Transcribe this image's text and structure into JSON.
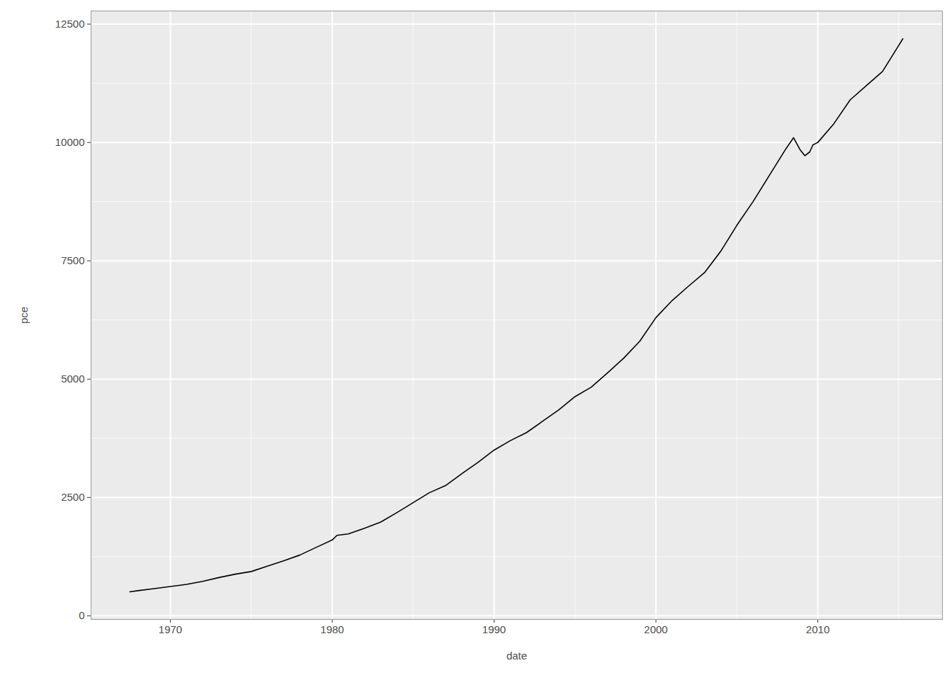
{
  "chart_data": {
    "type": "line",
    "x_label": "date",
    "y_label": "pce",
    "x": [
      1967.5,
      1968,
      1969,
      1970,
      1971,
      1972,
      1973,
      1974,
      1975,
      1976,
      1977,
      1978,
      1979,
      1980,
      1980.3,
      1981,
      1982,
      1983,
      1984,
      1985,
      1986,
      1987,
      1988,
      1989,
      1990,
      1991,
      1992,
      1993,
      1994,
      1995,
      1996,
      1997,
      1998,
      1999,
      2000,
      2001,
      2002,
      2003,
      2004,
      2005,
      2006,
      2007,
      2008,
      2008.5,
      2008.9,
      2009.2,
      2009.5,
      2009.7,
      2010,
      2011,
      2012,
      2013,
      2014,
      2015,
      2015.25
    ],
    "values": [
      507,
      531,
      573,
      620,
      663,
      727,
      808,
      879,
      935,
      1050,
      1163,
      1283,
      1444,
      1602,
      1700,
      1731,
      1850,
      1980,
      2180,
      2390,
      2600,
      2750,
      3000,
      3240,
      3500,
      3700,
      3870,
      4110,
      4350,
      4630,
      4830,
      5130,
      5440,
      5800,
      6300,
      6660,
      6960,
      7250,
      7700,
      8250,
      8750,
      9300,
      9850,
      10100,
      9850,
      9720,
      9800,
      9950,
      10000,
      10400,
      10900,
      11200,
      11500,
      12050,
      12190
    ],
    "color": "#000000",
    "xlim": [
      1965.1,
      2017.7
    ],
    "xticks": [
      1970,
      1980,
      1990,
      2000,
      2010
    ],
    "ylim": [
      -77,
      12778
    ],
    "yticks": [
      0,
      2500,
      5000,
      7500,
      10000,
      12500
    ],
    "grid": true
  }
}
